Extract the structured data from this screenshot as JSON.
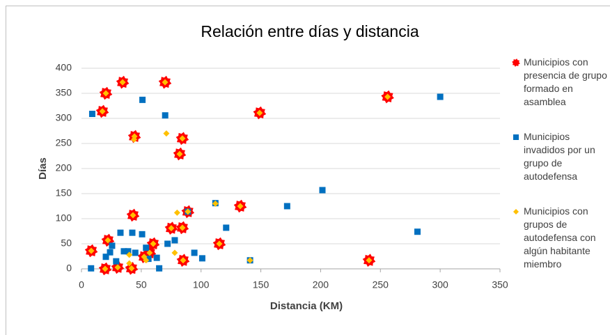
{
  "chart_data": {
    "type": "scatter",
    "title": "Relación entre días y distancia",
    "x_label": "Distancia (KM)",
    "y_label": "Días",
    "xlim": [
      0,
      350
    ],
    "xticks": [
      0,
      50,
      100,
      150,
      200,
      250,
      300,
      350
    ],
    "ylim": [
      0,
      400
    ],
    "yticks": [
      0,
      50,
      100,
      150,
      200,
      250,
      300,
      350,
      400
    ],
    "grid": true,
    "legend": "right",
    "series": [
      {
        "name": "Municipios con presencia de grupo formado en asamblea",
        "color": "#ff0000",
        "marker": "star",
        "x": [
          17.5,
          20.4,
          34.4,
          69.9,
          44.3,
          84.4,
          82.1,
          149,
          256,
          43.1,
          89,
          84.4,
          75.1,
          132.8,
          115.3,
          22.1,
          8.2,
          85,
          240.5,
          60,
          57,
          52.4,
          19.8,
          30.3,
          41.9
        ],
        "values": [
          314,
          350,
          372,
          372,
          264,
          260,
          229,
          311,
          343,
          107,
          114,
          82,
          81,
          125,
          50,
          57,
          36,
          17,
          17,
          50,
          32,
          24,
          0,
          3,
          1
        ]
      },
      {
        "name": "Municipios invadidos por un grupo de autodefensa",
        "color": "#0070c0",
        "marker": "square",
        "x": [
          9,
          51,
          70,
          300,
          201.5,
          172,
          281,
          112,
          121,
          101,
          94.4,
          141,
          72,
          78,
          32.6,
          42.5,
          50.7,
          35.5,
          39,
          45,
          25.6,
          23.9,
          20.4,
          29,
          8,
          54,
          63,
          65,
          56,
          89
        ],
        "values": [
          309,
          337,
          306,
          343,
          157,
          125,
          74,
          131,
          82,
          21,
          32,
          17,
          50,
          57,
          72,
          72,
          69,
          35,
          35,
          32,
          46,
          33,
          24,
          15,
          1,
          42,
          22,
          1,
          20,
          114
        ]
      },
      {
        "name": "Municipios con grupos de autodefensa con algún habitante miembro",
        "color": "#ffc000",
        "marker": "diamond",
        "x": [
          17.5,
          20.4,
          34.4,
          69.9,
          44.3,
          84.4,
          82.1,
          149,
          256,
          43.1,
          89,
          84.4,
          75.1,
          132.8,
          115.3,
          22.1,
          8.2,
          85,
          240.5,
          60,
          57,
          52.4,
          19.8,
          30.3,
          41.9,
          71,
          44,
          112,
          80,
          78,
          40,
          40,
          141,
          54
        ],
        "values": [
          314,
          350,
          372,
          372,
          264,
          260,
          229,
          311,
          343,
          107,
          114,
          82,
          81,
          125,
          50,
          57,
          36,
          17,
          17,
          50,
          32,
          24,
          0,
          3,
          1,
          270,
          258,
          130,
          112,
          32,
          28,
          11,
          17,
          17
        ]
      }
    ]
  }
}
